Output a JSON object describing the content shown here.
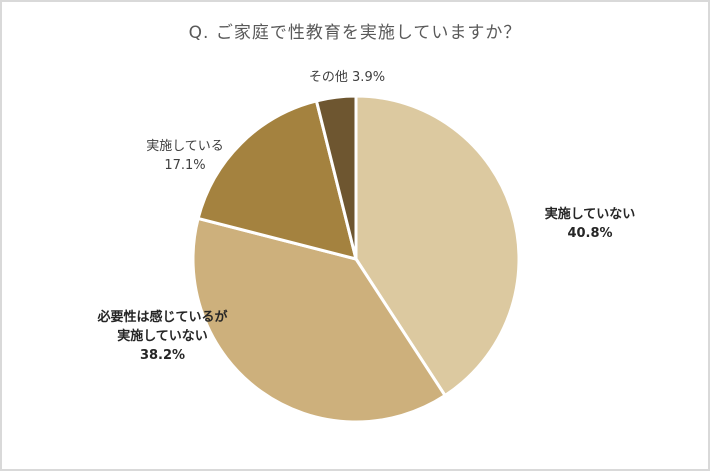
{
  "chart_data": {
    "type": "pie",
    "title": "Q. ご家庭で性教育を実施していますか？",
    "categories": [
      "実施していない",
      "必要性は感じているが実施していない",
      "実施している",
      "その他"
    ],
    "values": [
      40.8,
      38.2,
      17.1,
      3.9
    ],
    "unit": "%",
    "colors": [
      "#dcc9a0",
      "#cdb07c",
      "#a4823f",
      "#6e5630"
    ],
    "start_angle": "12 o'clock, clockwise",
    "legend": "none (data labels on slices)"
  },
  "labels": {
    "not_implemented": {
      "name": "実施していない",
      "pct": "40.8%"
    },
    "need_but_not": {
      "line1": "必要性は感じているが",
      "line2": "実施していない",
      "pct": "38.2%"
    },
    "implemented": {
      "name": "実施している",
      "pct": "17.1%"
    },
    "other": {
      "text": "その他 3.9%"
    }
  }
}
